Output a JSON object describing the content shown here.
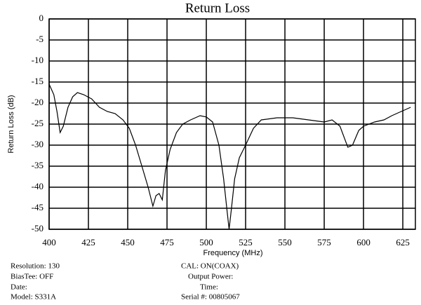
{
  "chart_data": {
    "type": "line",
    "title": "Return Loss",
    "x_label": "Frequency (MHz)",
    "y_label": "Return Loss (dB)",
    "x": [
      400,
      403,
      405,
      407,
      409,
      412,
      415,
      418,
      422,
      427,
      432,
      437,
      442,
      447,
      451,
      455,
      459,
      463,
      466,
      468,
      470,
      472,
      474,
      477,
      481,
      485,
      490,
      496,
      500,
      504,
      508,
      511,
      513,
      514.5,
      516,
      518,
      521,
      525,
      530,
      535,
      545,
      555,
      565,
      575,
      580,
      585,
      590,
      593,
      597,
      600,
      607,
      613,
      618,
      624,
      630
    ],
    "series": [
      {
        "color": "#000000",
        "values": [
          -15.5,
          -18,
          -22,
          -27,
          -25.5,
          -21,
          -18.5,
          -17.5,
          -18,
          -19,
          -21,
          -22,
          -22.5,
          -24,
          -26,
          -30,
          -35,
          -40,
          -44.5,
          -42,
          -41.5,
          -43,
          -36,
          -31,
          -27,
          -25,
          -24,
          -23,
          -23.3,
          -24.5,
          -30,
          -38,
          -45,
          -50,
          -45,
          -38,
          -33,
          -30,
          -26,
          -24,
          -23.5,
          -23.5,
          -24,
          -24.5,
          -24,
          -25.5,
          -30.5,
          -30,
          -26.5,
          -25.5,
          -24.5,
          -24,
          -23,
          -22,
          -21
        ]
      }
    ],
    "xlim": [
      400,
      633
    ],
    "ylim": [
      -50,
      0
    ],
    "xticks": [
      400,
      425,
      450,
      475,
      500,
      525,
      550,
      575,
      600,
      625
    ],
    "yticks": [
      0,
      -5,
      -10,
      -15,
      -20,
      -25,
      -30,
      -35,
      -40,
      -45,
      -50
    ],
    "grid": true,
    "annotations": [
      "Resolution:  130",
      "BiasTee: OFF",
      "Date:",
      "Model: S331A",
      "CAL: ON(COAX)",
      "Output Power:",
      "Time:",
      "Serial #: 00805067"
    ]
  }
}
